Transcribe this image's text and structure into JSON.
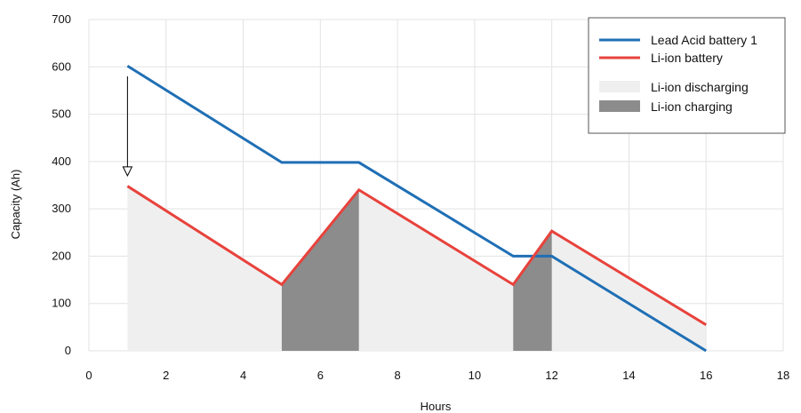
{
  "chart_data": {
    "type": "line",
    "title": "",
    "xlabel": "Hours",
    "ylabel": "Capacity (Ah)",
    "xlim": [
      0,
      18
    ],
    "ylim": [
      0,
      700
    ],
    "x_ticks": [
      0,
      2,
      4,
      6,
      8,
      10,
      12,
      14,
      16,
      18
    ],
    "y_ticks": [
      0,
      100,
      200,
      300,
      400,
      500,
      600,
      700
    ],
    "grid": true,
    "legend_position": "top-right",
    "series": [
      {
        "name": "Lead Acid battery 1",
        "color": "#1f6fb5",
        "points": [
          [
            1,
            602
          ],
          [
            5,
            398
          ],
          [
            7,
            398
          ],
          [
            11,
            200
          ],
          [
            12,
            200
          ],
          [
            16,
            0
          ]
        ]
      },
      {
        "name": "Li-ion battery",
        "color": "#e8423c",
        "points": [
          [
            1,
            348
          ],
          [
            5,
            140
          ],
          [
            7,
            340
          ],
          [
            11,
            140
          ],
          [
            12,
            253
          ],
          [
            16,
            55
          ]
        ]
      }
    ],
    "shaded_regions": [
      {
        "name": "Li-ion discharging",
        "color": "#efefef",
        "segments": [
          [
            [
              1,
              348
            ],
            [
              5,
              140
            ]
          ],
          [
            [
              7,
              340
            ],
            [
              11,
              140
            ]
          ],
          [
            [
              12,
              253
            ],
            [
              16,
              55
            ]
          ]
        ]
      },
      {
        "name": "Li-ion charging",
        "color": "#8c8c8c",
        "segments": [
          [
            [
              5,
              140
            ],
            [
              7,
              340
            ]
          ],
          [
            [
              11,
              140
            ],
            [
              12,
              253
            ]
          ]
        ]
      }
    ],
    "annotations": [
      {
        "type": "arrow",
        "from": [
          1,
          580
        ],
        "to": [
          1,
          370
        ]
      }
    ]
  }
}
